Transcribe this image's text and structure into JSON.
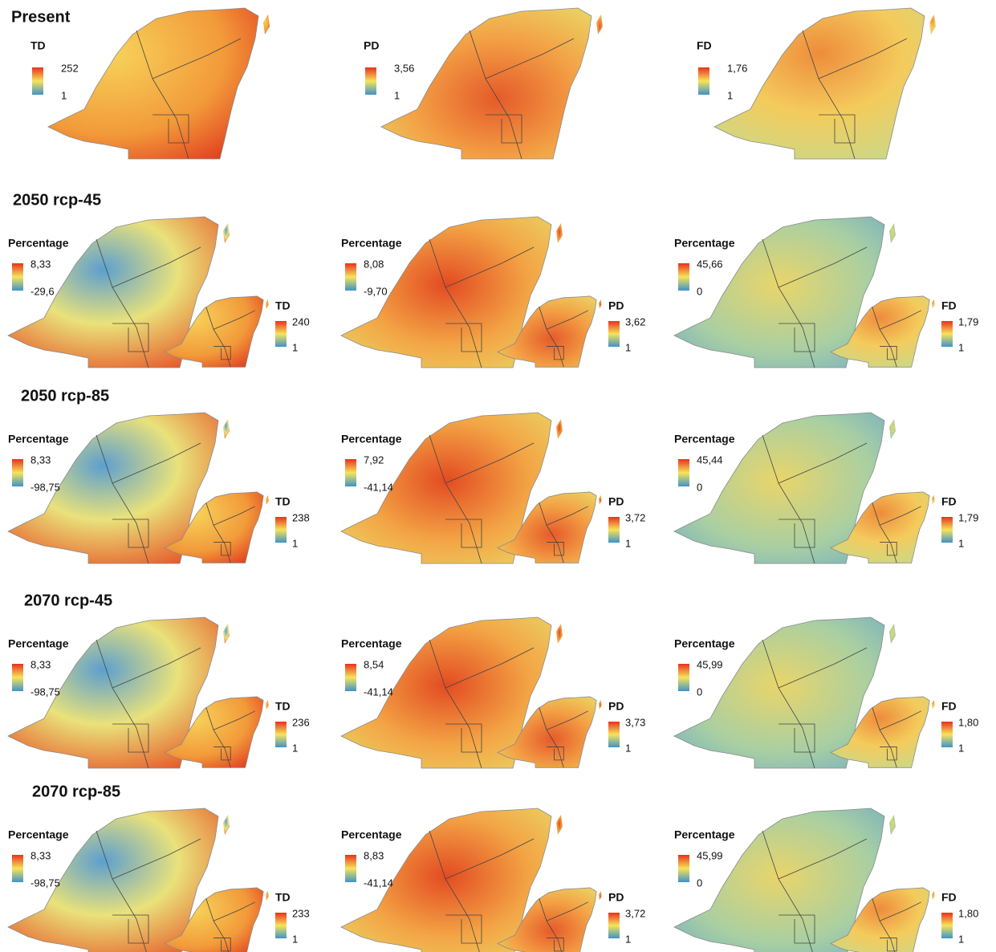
{
  "rows": [
    {
      "title": "Present",
      "panels": [
        {
          "legend_title": "TD",
          "max": "252",
          "min": "1"
        },
        {
          "legend_title": "PD",
          "max": "3,56",
          "min": "1"
        },
        {
          "legend_title": "FD",
          "max": "1,76",
          "min": "1"
        }
      ]
    },
    {
      "title": "2050 rcp-45",
      "panels": [
        {
          "legend_title": "Percentage",
          "max": "8,33",
          "min": "-29,6",
          "inset": {
            "label": "TD",
            "max": "240",
            "min": "1"
          }
        },
        {
          "legend_title": "Percentage",
          "max": "8,08",
          "min": "-9,70",
          "inset": {
            "label": "PD",
            "max": "3,62",
            "min": "1"
          }
        },
        {
          "legend_title": "Percentage",
          "max": "45,66",
          "min": "0",
          "inset": {
            "label": "FD",
            "max": "1,79",
            "min": "1"
          }
        }
      ]
    },
    {
      "title": "2050 rcp-85",
      "panels": [
        {
          "legend_title": "Percentage",
          "max": "8,33",
          "min": "-98,75",
          "inset": {
            "label": "TD",
            "max": "238",
            "min": "1"
          }
        },
        {
          "legend_title": "Percentage",
          "max": "7,92",
          "min": "-41,14",
          "inset": {
            "label": "PD",
            "max": "3,72",
            "min": "1"
          }
        },
        {
          "legend_title": "Percentage",
          "max": "45,44",
          "min": "0",
          "inset": {
            "label": "FD",
            "max": "1,79",
            "min": "1"
          }
        }
      ]
    },
    {
      "title": "2070 rcp-45",
      "panels": [
        {
          "legend_title": "Percentage",
          "max": "8,33",
          "min": "-98,75",
          "inset": {
            "label": "TD",
            "max": "236",
            "min": "1"
          }
        },
        {
          "legend_title": "Percentage",
          "max": "8,54",
          "min": "-41,14",
          "inset": {
            "label": "PD",
            "max": "3,73",
            "min": "1"
          }
        },
        {
          "legend_title": "Percentage",
          "max": "45,99",
          "min": "0",
          "inset": {
            "label": "FD",
            "max": "1,80",
            "min": "1"
          }
        }
      ]
    },
    {
      "title": "2070 rcp-85",
      "panels": [
        {
          "legend_title": "Percentage",
          "max": "8,33",
          "min": "-98,75",
          "inset": {
            "label": "TD",
            "max": "233",
            "min": "1"
          }
        },
        {
          "legend_title": "Percentage",
          "max": "8,83",
          "min": "-41,14",
          "inset": {
            "label": "PD",
            "max": "3,72",
            "min": "1"
          }
        },
        {
          "legend_title": "Percentage",
          "max": "45,99",
          "min": "0",
          "inset": {
            "label": "FD",
            "max": "1,80",
            "min": "1"
          }
        }
      ]
    }
  ]
}
